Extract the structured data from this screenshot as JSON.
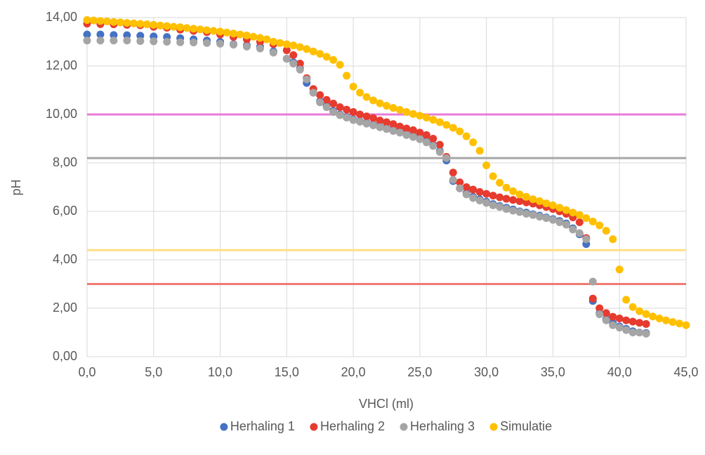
{
  "chart_data": {
    "type": "scatter",
    "xlabel": "VHCl (ml)",
    "ylabel": "pH",
    "xlim": [
      0,
      45
    ],
    "xticks": [
      {
        "value": 0,
        "label": "0,0"
      },
      {
        "value": 5,
        "label": "5,0"
      },
      {
        "value": 10,
        "label": "10,0"
      },
      {
        "value": 15,
        "label": "15,0"
      },
      {
        "value": 20,
        "label": "20,0"
      },
      {
        "value": 25,
        "label": "25,0"
      },
      {
        "value": 30,
        "label": "30,0"
      },
      {
        "value": 35,
        "label": "35,0"
      },
      {
        "value": 40,
        "label": "40,0"
      },
      {
        "value": 45,
        "label": "45,0"
      }
    ],
    "ylim": [
      0,
      14
    ],
    "yticks": [
      {
        "value": 0,
        "label": "0,00"
      },
      {
        "value": 2,
        "label": "2,00"
      },
      {
        "value": 4,
        "label": "4,00"
      },
      {
        "value": 6,
        "label": "6,00"
      },
      {
        "value": 8,
        "label": "8,00"
      },
      {
        "value": 10,
        "label": "10,00"
      },
      {
        "value": 12,
        "label": "12,00"
      },
      {
        "value": 14,
        "label": "14,00"
      }
    ],
    "grid": true,
    "legend": "bottom",
    "reference_lines": [
      {
        "value": 10,
        "color": "#e87ad8"
      },
      {
        "value": 8.2,
        "color": "#a6a6a6"
      },
      {
        "value": 4.4,
        "color": "#ffe083"
      },
      {
        "value": 3,
        "color": "#f07b72"
      }
    ],
    "series": [
      {
        "name": "Herhaling 1",
        "color": "#4472c4",
        "x": [
          0,
          1,
          2,
          3,
          4,
          5,
          6,
          7,
          8,
          9,
          10,
          11,
          12,
          13,
          14,
          15,
          15.5,
          16,
          16.5,
          17,
          17.5,
          18,
          18.5,
          19,
          19.5,
          20,
          20.5,
          21,
          21.5,
          22,
          22.5,
          23,
          23.5,
          24,
          24.5,
          25,
          25.5,
          26,
          26.5,
          27,
          27.5,
          28,
          28.5,
          29,
          29.5,
          30,
          30.5,
          31,
          31.5,
          32,
          32.5,
          33,
          33.5,
          34,
          34.5,
          35,
          35.5,
          36,
          36.5,
          37,
          37.5,
          38,
          38.5,
          39,
          39.5,
          40,
          40.5,
          41,
          41.5,
          42
        ],
        "values": [
          13.3,
          13.3,
          13.28,
          13.27,
          13.25,
          13.22,
          13.2,
          13.15,
          13.1,
          13.05,
          13.0,
          12.9,
          12.85,
          12.8,
          12.6,
          12.3,
          12.15,
          11.9,
          11.3,
          10.9,
          10.55,
          10.35,
          10.15,
          10.0,
          9.9,
          9.8,
          9.72,
          9.65,
          9.58,
          9.5,
          9.43,
          9.35,
          9.27,
          9.18,
          9.1,
          9.0,
          8.9,
          8.75,
          8.5,
          8.1,
          7.25,
          6.95,
          6.75,
          6.6,
          6.5,
          6.4,
          6.3,
          6.22,
          6.15,
          6.08,
          6.0,
          5.95,
          5.88,
          5.82,
          5.75,
          5.68,
          5.6,
          5.5,
          5.3,
          5.05,
          4.65,
          2.3,
          1.8,
          1.55,
          1.4,
          1.25,
          1.15,
          1.05,
          1.0,
          0.98
        ]
      },
      {
        "name": "Herhaling 2",
        "color": "#e63b2e",
        "x": [
          0,
          1,
          2,
          3,
          4,
          5,
          6,
          7,
          8,
          9,
          10,
          11,
          12,
          13,
          14,
          15,
          15.5,
          16,
          16.5,
          17,
          17.5,
          18,
          18.5,
          19,
          19.5,
          20,
          20.5,
          21,
          21.5,
          22,
          22.5,
          23,
          23.5,
          24,
          24.5,
          25,
          25.5,
          26,
          26.5,
          27,
          27.5,
          28,
          28.5,
          29,
          29.5,
          30,
          30.5,
          31,
          31.5,
          32,
          32.5,
          33,
          33.5,
          34,
          34.5,
          35,
          35.5,
          36,
          36.5,
          37,
          37.5,
          38,
          38.5,
          39,
          39.5,
          40,
          40.5,
          41,
          41.5,
          42
        ],
        "values": [
          13.75,
          13.73,
          13.72,
          13.7,
          13.68,
          13.62,
          13.58,
          13.5,
          13.45,
          13.4,
          13.3,
          13.2,
          13.1,
          13.0,
          12.9,
          12.65,
          12.45,
          12.1,
          11.5,
          11.05,
          10.8,
          10.6,
          10.45,
          10.3,
          10.2,
          10.1,
          10.0,
          9.92,
          9.85,
          9.75,
          9.68,
          9.6,
          9.5,
          9.42,
          9.35,
          9.25,
          9.15,
          9.0,
          8.75,
          8.25,
          7.6,
          7.2,
          7.0,
          6.9,
          6.8,
          6.72,
          6.65,
          6.58,
          6.52,
          6.47,
          6.42,
          6.37,
          6.32,
          6.25,
          6.18,
          6.1,
          6.0,
          5.9,
          5.75,
          5.55,
          4.9,
          2.4,
          2.0,
          1.8,
          1.65,
          1.58,
          1.5,
          1.45,
          1.4,
          1.35
        ]
      },
      {
        "name": "Herhaling 3",
        "color": "#a5a5a5",
        "x": [
          0,
          1,
          2,
          3,
          4,
          5,
          6,
          7,
          8,
          9,
          10,
          11,
          12,
          13,
          14,
          15,
          15.5,
          16,
          16.5,
          17,
          17.5,
          18,
          18.5,
          19,
          19.5,
          20,
          20.5,
          21,
          21.5,
          22,
          22.5,
          23,
          23.5,
          24,
          24.5,
          25,
          25.5,
          26,
          26.5,
          27,
          27.5,
          28,
          28.5,
          29,
          29.5,
          30,
          30.5,
          31,
          31.5,
          32,
          32.5,
          33,
          33.5,
          34,
          34.5,
          35,
          35.5,
          36,
          36.5,
          37,
          37.5,
          38,
          38.5,
          39,
          39.5,
          40,
          40.5,
          41,
          41.5,
          42
        ],
        "values": [
          13.05,
          13.05,
          13.05,
          13.05,
          13.03,
          13.02,
          13.0,
          12.98,
          12.97,
          12.95,
          12.92,
          12.88,
          12.8,
          12.72,
          12.55,
          12.3,
          12.1,
          11.85,
          11.45,
          10.9,
          10.5,
          10.3,
          10.1,
          9.97,
          9.87,
          9.77,
          9.7,
          9.62,
          9.55,
          9.47,
          9.4,
          9.32,
          9.25,
          9.15,
          9.07,
          8.98,
          8.85,
          8.7,
          8.45,
          8.2,
          7.3,
          6.95,
          6.7,
          6.55,
          6.45,
          6.35,
          6.25,
          6.18,
          6.1,
          6.03,
          5.97,
          5.9,
          5.85,
          5.78,
          5.72,
          5.65,
          5.55,
          5.45,
          5.25,
          5.1,
          4.85,
          3.1,
          1.75,
          1.5,
          1.3,
          1.2,
          1.1,
          1.0,
          1.0,
          0.95
        ]
      },
      {
        "name": "Simulatie",
        "color": "#ffc000",
        "x": [
          0,
          0.5,
          1,
          1.5,
          2,
          2.5,
          3,
          3.5,
          4,
          4.5,
          5,
          5.5,
          6,
          6.5,
          7,
          7.5,
          8,
          8.5,
          9,
          9.5,
          10,
          10.5,
          11,
          11.5,
          12,
          12.5,
          13,
          13.5,
          14,
          14.5,
          15,
          15.5,
          16,
          16.5,
          17,
          17.5,
          18,
          18.5,
          19,
          19.5,
          20,
          20.5,
          21,
          21.5,
          22,
          22.5,
          23,
          23.5,
          24,
          24.5,
          25,
          25.5,
          26,
          26.5,
          27,
          27.5,
          28,
          28.5,
          29,
          29.5,
          30,
          30.5,
          31,
          31.5,
          32,
          32.5,
          33,
          33.5,
          34,
          34.5,
          35,
          35.5,
          36,
          36.5,
          37,
          37.5,
          38,
          38.5,
          39,
          39.5,
          40,
          40.5,
          41,
          41.5,
          42,
          42.5,
          43,
          43.5,
          44,
          44.5,
          45
        ],
        "values": [
          13.9,
          13.88,
          13.86,
          13.84,
          13.82,
          13.8,
          13.78,
          13.76,
          13.74,
          13.72,
          13.7,
          13.67,
          13.65,
          13.62,
          13.6,
          13.57,
          13.54,
          13.51,
          13.48,
          13.45,
          13.42,
          13.38,
          13.34,
          13.3,
          13.26,
          13.21,
          13.16,
          13.1,
          13.0,
          12.95,
          12.9,
          12.85,
          12.78,
          12.7,
          12.6,
          12.5,
          12.38,
          12.25,
          12.05,
          11.6,
          11.15,
          10.9,
          10.72,
          10.58,
          10.46,
          10.36,
          10.27,
          10.19,
          10.1,
          10.02,
          9.95,
          9.87,
          9.78,
          9.68,
          9.57,
          9.45,
          9.3,
          9.1,
          8.85,
          8.5,
          7.9,
          7.45,
          7.18,
          6.98,
          6.83,
          6.7,
          6.6,
          6.5,
          6.42,
          6.33,
          6.25,
          6.15,
          6.05,
          5.95,
          5.85,
          5.72,
          5.58,
          5.42,
          5.2,
          4.85,
          3.6,
          2.35,
          2.05,
          1.88,
          1.76,
          1.66,
          1.58,
          1.5,
          1.43,
          1.37,
          1.3
        ]
      }
    ]
  }
}
